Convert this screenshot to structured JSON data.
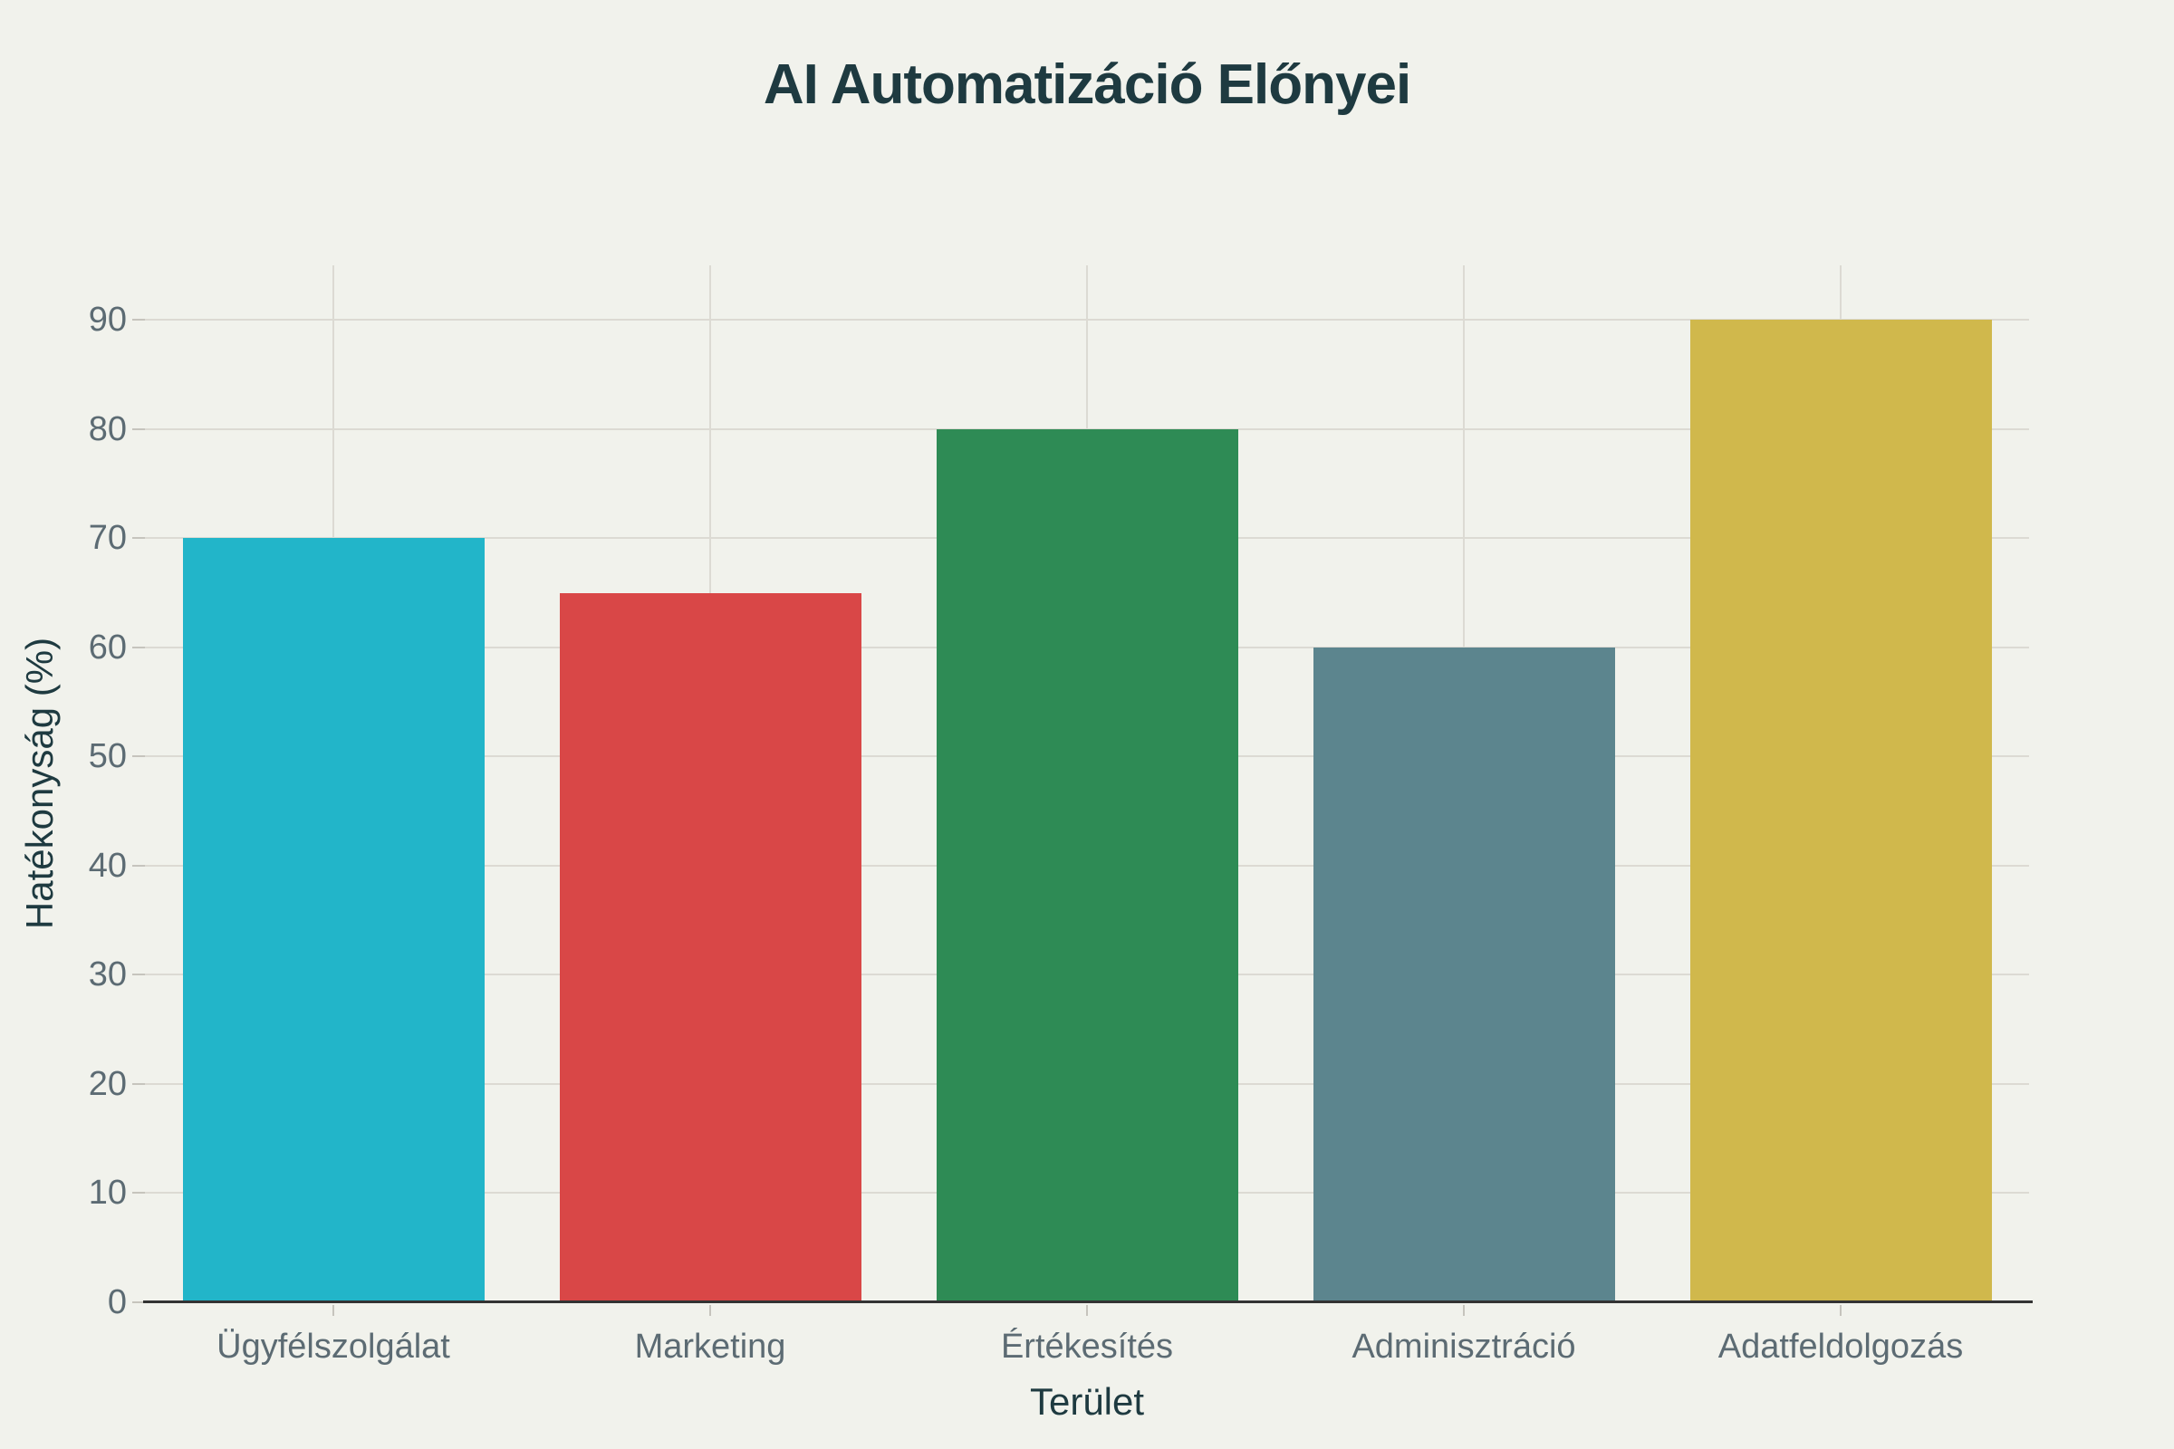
{
  "chart_data": {
    "type": "bar",
    "title": "AI Automatizáció Előnyei",
    "xlabel": "Terület",
    "ylabel": "Hatékonyság (%)",
    "categories": [
      "Ügyfélszolgálat",
      "Marketing",
      "Értékesítés",
      "Adminisztráció",
      "Adatfeldolgozás"
    ],
    "values": [
      70,
      65,
      80,
      60,
      90
    ],
    "bar_colors": [
      "#22B5C9",
      "#D94747",
      "#2E8B55",
      "#5C858E",
      "#D0B84C"
    ],
    "ylim": [
      0,
      95
    ],
    "yticks": [
      0,
      10,
      20,
      30,
      40,
      50,
      60,
      70,
      80,
      90
    ],
    "grid": "horizontal gridlines at y ticks, vertical gridlines at category centers",
    "legend": "none",
    "colors": {
      "background": "#F1F2EC",
      "title_text": "#1E3A40",
      "axis_title_text": "#1E3A40",
      "tick_label_text": "#5C6B73",
      "gridline": "#DCDAD3",
      "tick_mark": "#C6C4BD",
      "axis_line": "#333333"
    }
  }
}
